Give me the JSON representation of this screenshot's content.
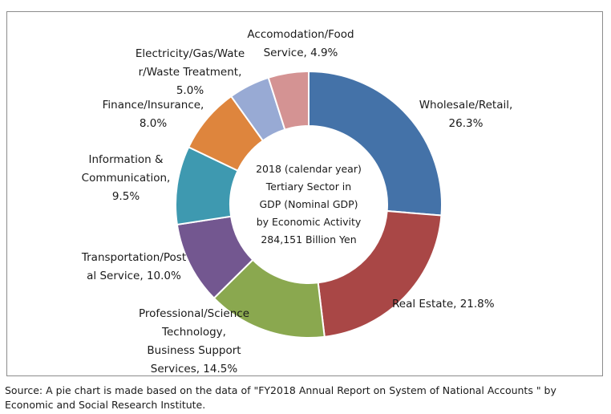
{
  "chart_data": {
    "type": "pie",
    "variant": "donut",
    "title": "",
    "center_text": [
      "2018 (calendar year)",
      "Tertiary Sector in",
      "GDP (Nominal GDP)",
      "by Economic Activity",
      "284,151 Billion Yen"
    ],
    "slices": [
      {
        "label_lines": [
          "Wholesale/Retail,",
          "26.3%"
        ],
        "value": 26.3,
        "color": "#4472a8"
      },
      {
        "label_lines": [
          "Real Estate, 21.8%"
        ],
        "value": 21.8,
        "color": "#a94746"
      },
      {
        "label_lines": [
          "Professional/Science",
          "Technology,",
          "Business Support",
          "Services, 14.5%"
        ],
        "value": 14.5,
        "color": "#8aa84f"
      },
      {
        "label_lines": [
          "Transportation/Post",
          "al Service, 10.0%"
        ],
        "value": 10.0,
        "color": "#735790"
      },
      {
        "label_lines": [
          "Information &",
          "Communication,",
          "9.5%"
        ],
        "value": 9.5,
        "color": "#3e99b0"
      },
      {
        "label_lines": [
          "Finance/Insurance,",
          "8.0%"
        ],
        "value": 8.0,
        "color": "#de853d"
      },
      {
        "label_lines": [
          "Electricity/Gas/Wate",
          "r/Waste Treatment,",
          "5.0%"
        ],
        "value": 5.0,
        "color": "#98aad4"
      },
      {
        "label_lines": [
          "Accomodation/Food",
          "Service, 4.9%"
        ],
        "value": 4.9,
        "color": "#d49393"
      }
    ],
    "legend": "none"
  },
  "source_note": "Source: A pie chart is made based on the data of \"FY2018 Annual Report on System of National Accounts \" by Economic and Social Research Institute."
}
